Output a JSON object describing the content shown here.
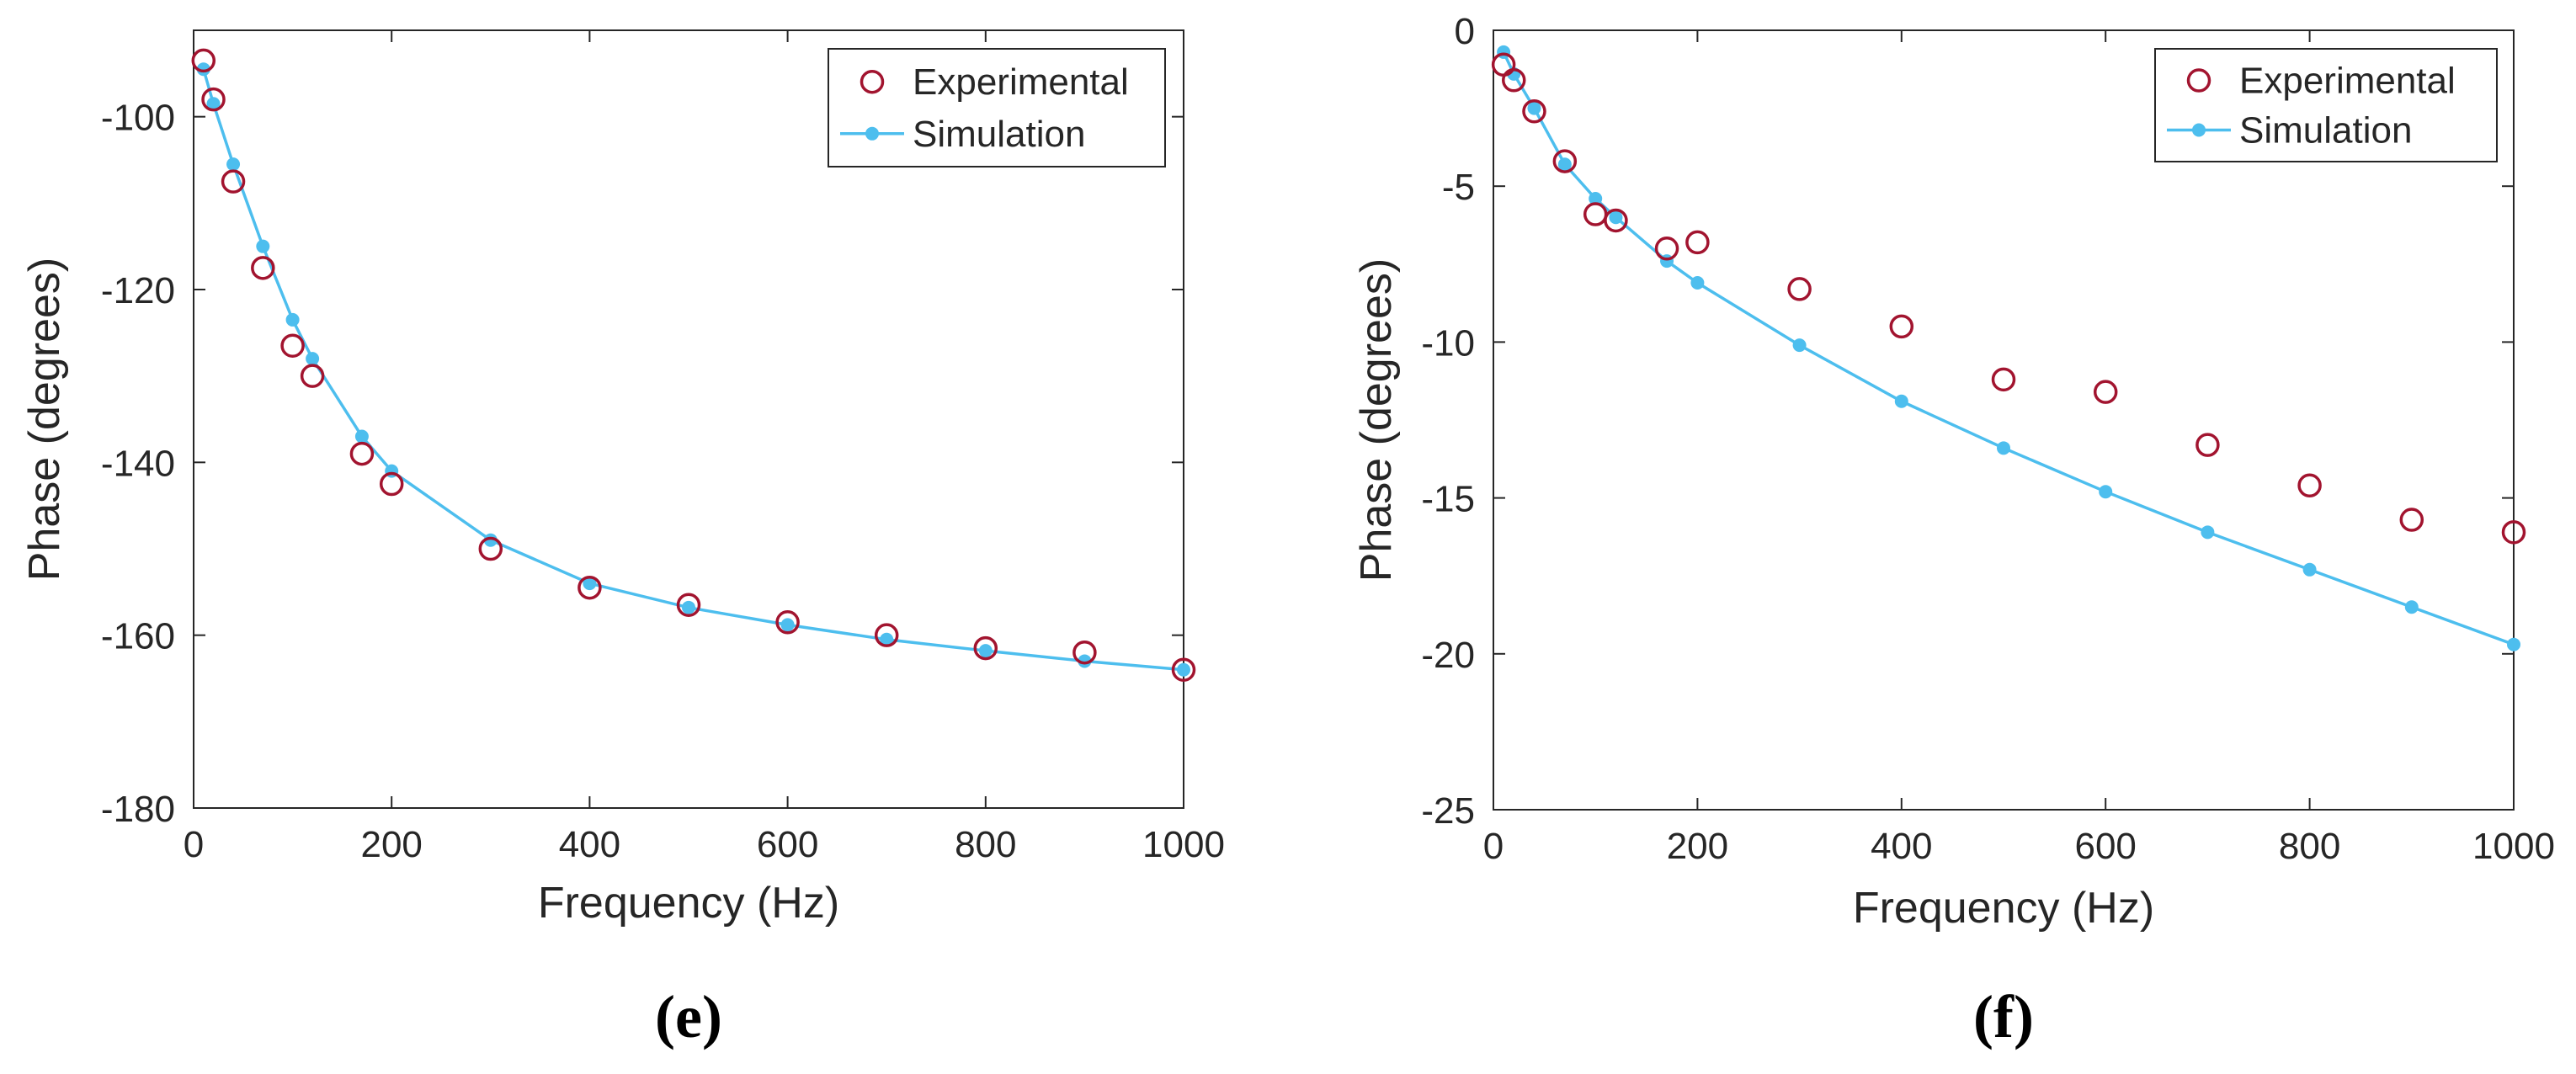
{
  "colors": {
    "experimental": "#A2142F",
    "simulation": "#4DBEEE",
    "axis": "#262626",
    "grid_frame": "#262626"
  },
  "chart_data": [
    {
      "panel_label": "(e)",
      "type": "scatter+line",
      "xlabel": "Frequency (Hz)",
      "ylabel": "Phase (degrees)",
      "xlim": [
        0,
        1000
      ],
      "ylim": [
        -180,
        -90
      ],
      "xticks": [
        0,
        200,
        400,
        600,
        800,
        1000
      ],
      "yticks": [
        -180,
        -160,
        -140,
        -120,
        -100
      ],
      "xtick_labels": [
        "0",
        "200",
        "400",
        "600",
        "800",
        "1000"
      ],
      "ytick_labels": [
        "-180",
        "-160",
        "-140",
        "-120",
        "-100"
      ],
      "grid": false,
      "legend_position": "top-right",
      "legend": [
        "Experimental",
        "Simulation"
      ],
      "series": [
        {
          "name": "Experimental",
          "style": "open-circle",
          "x": [
            10,
            20,
            40,
            70,
            100,
            120,
            170,
            200,
            300,
            400,
            500,
            600,
            700,
            800,
            900,
            1000
          ],
          "y": [
            -93.5,
            -98,
            -107.5,
            -117.5,
            -126.5,
            -130,
            -139,
            -142.5,
            -150,
            -154.5,
            -156.5,
            -158.5,
            -160,
            -161.5,
            -162,
            -164
          ]
        },
        {
          "name": "Simulation",
          "style": "line-dot",
          "x": [
            10,
            20,
            40,
            70,
            100,
            120,
            170,
            200,
            300,
            400,
            500,
            600,
            700,
            800,
            900,
            1000
          ],
          "y": [
            -94.5,
            -98.5,
            -105.5,
            -115,
            -123.5,
            -128,
            -137,
            -141,
            -149,
            -154,
            -156.8,
            -158.8,
            -160.5,
            -161.8,
            -163,
            -164
          ]
        }
      ]
    },
    {
      "panel_label": "(f)",
      "type": "scatter+line",
      "xlabel": "Frequency (Hz)",
      "ylabel": "Phase (degrees)",
      "xlim": [
        0,
        1000
      ],
      "ylim": [
        -25,
        0
      ],
      "xticks": [
        0,
        200,
        400,
        600,
        800,
        1000
      ],
      "yticks": [
        -25,
        -20,
        -15,
        -10,
        -5,
        0
      ],
      "xtick_labels": [
        "0",
        "200",
        "400",
        "600",
        "800",
        "1000"
      ],
      "ytick_labels": [
        "-25",
        "-20",
        "-15",
        "-10",
        "-5",
        "0"
      ],
      "grid": false,
      "legend_position": "top-right",
      "legend": [
        "Experimental",
        "Simulation"
      ],
      "series": [
        {
          "name": "Experimental",
          "style": "open-circle",
          "x": [
            10,
            20,
            40,
            70,
            100,
            120,
            170,
            200,
            300,
            400,
            500,
            600,
            700,
            800,
            900,
            1000
          ],
          "y": [
            -1.1,
            -1.6,
            -2.6,
            -4.2,
            -5.9,
            -6.1,
            -7.0,
            -6.8,
            -8.3,
            -9.5,
            -11.2,
            -11.6,
            -13.3,
            -14.6,
            -15.7,
            -16.1
          ]
        },
        {
          "name": "Simulation",
          "style": "line-dot",
          "x": [
            10,
            20,
            40,
            70,
            100,
            120,
            170,
            200,
            300,
            400,
            500,
            600,
            700,
            800,
            900,
            1000
          ],
          "y": [
            -0.7,
            -1.4,
            -2.5,
            -4.3,
            -5.4,
            -6.0,
            -7.4,
            -8.1,
            -10.1,
            -11.9,
            -13.4,
            -14.8,
            -16.1,
            -17.3,
            -18.5,
            -19.7
          ]
        }
      ]
    }
  ]
}
